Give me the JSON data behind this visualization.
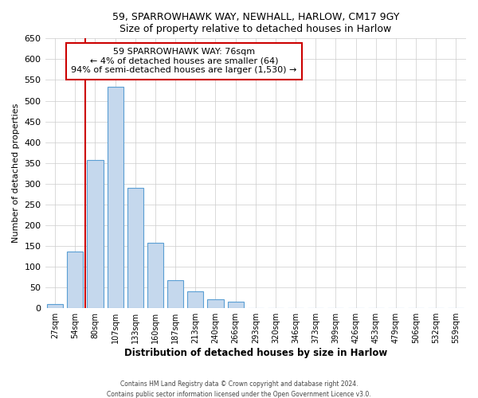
{
  "title": "59, SPARROWHAWK WAY, NEWHALL, HARLOW, CM17 9GY",
  "subtitle": "Size of property relative to detached houses in Harlow",
  "bar_labels": [
    "27sqm",
    "54sqm",
    "80sqm",
    "107sqm",
    "133sqm",
    "160sqm",
    "187sqm",
    "213sqm",
    "240sqm",
    "266sqm",
    "293sqm",
    "320sqm",
    "346sqm",
    "373sqm",
    "399sqm",
    "426sqm",
    "453sqm",
    "479sqm",
    "506sqm",
    "532sqm",
    "559sqm"
  ],
  "bar_values": [
    10,
    137,
    358,
    534,
    290,
    158,
    67,
    40,
    22,
    15,
    0,
    0,
    0,
    0,
    0,
    1,
    0,
    0,
    0,
    0,
    1
  ],
  "bar_color": "#c5d8ed",
  "bar_edge_color": "#5a9fd4",
  "ylim": [
    0,
    650
  ],
  "yticks": [
    0,
    50,
    100,
    150,
    200,
    250,
    300,
    350,
    400,
    450,
    500,
    550,
    600,
    650
  ],
  "ylabel": "Number of detached properties",
  "xlabel": "Distribution of detached houses by size in Harlow",
  "property_line_color": "#cc0000",
  "annotation_title": "59 SPARROWHAWK WAY: 76sqm",
  "annotation_line1": "← 4% of detached houses are smaller (64)",
  "annotation_line2": "94% of semi-detached houses are larger (1,530) →",
  "annotation_box_color": "#ffffff",
  "annotation_border_color": "#cc0000",
  "footer1": "Contains HM Land Registry data © Crown copyright and database right 2024.",
  "footer2": "Contains public sector information licensed under the Open Government Licence v3.0.",
  "bg_color": "#ffffff",
  "grid_color": "#cccccc"
}
